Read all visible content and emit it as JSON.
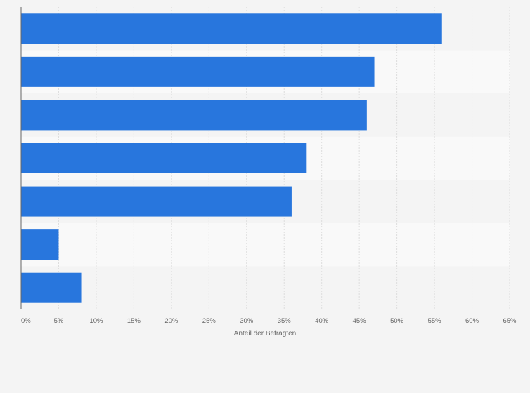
{
  "chart_data": {
    "type": "bar",
    "orientation": "horizontal",
    "categories": [
      "",
      "",
      "",
      "",
      "",
      "",
      ""
    ],
    "values": [
      56,
      47,
      46,
      38,
      36,
      5,
      8
    ],
    "xlabel": "Anteil der Befragten",
    "ylabel": "",
    "xlim": [
      0,
      65
    ],
    "ticks": [
      0,
      5,
      10,
      15,
      20,
      25,
      30,
      35,
      40,
      45,
      50,
      55,
      60,
      65
    ],
    "tick_labels": [
      "0%",
      "5%",
      "10%",
      "15%",
      "20%",
      "25%",
      "30%",
      "35%",
      "40%",
      "45%",
      "50%",
      "55%",
      "60%",
      "65%"
    ],
    "grid": "vertical",
    "legend": "none",
    "colors": {
      "bar": "#2876dd",
      "band_dark": "#f4f4f4",
      "band_light": "#f9f9f9",
      "gridline": "#dddddd",
      "axis": "#666666",
      "tick_text": "#666666"
    }
  }
}
